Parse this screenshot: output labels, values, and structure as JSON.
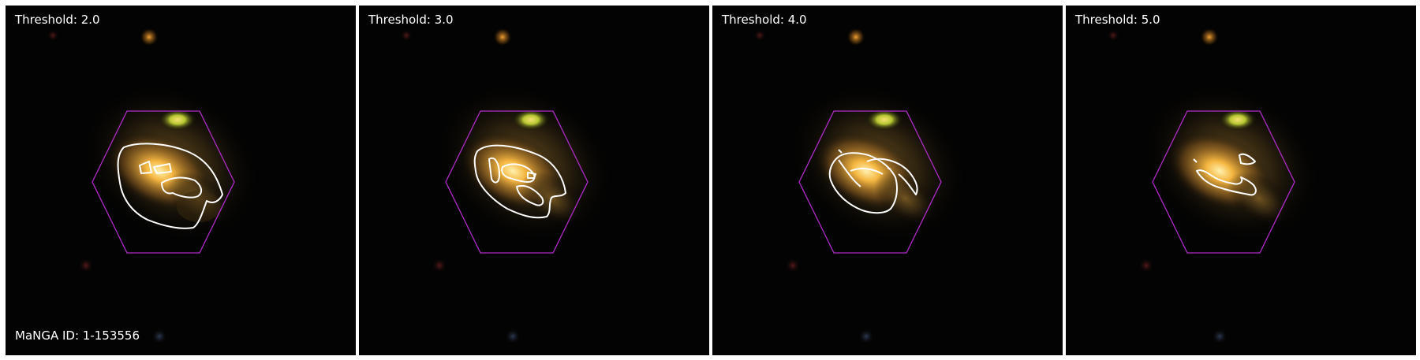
{
  "panels": [
    {
      "label": "Threshold: 2.0",
      "threshold": 2.0
    },
    {
      "label": "Threshold: 3.0",
      "threshold": 3.0
    },
    {
      "label": "Threshold: 4.0",
      "threshold": 4.0
    },
    {
      "label": "Threshold: 5.0",
      "threshold": 5.0
    }
  ],
  "manga_id_label": "MaNGA ID: 1-153556",
  "colors": {
    "background": "#030303",
    "hexagon": "#b02cc8",
    "contour": "#ffffff",
    "galaxy_core": "#f5b640",
    "companion": "#b8c832"
  },
  "overlays": {
    "footprint_shape": "hexagon",
    "contour_style": "white outline"
  }
}
